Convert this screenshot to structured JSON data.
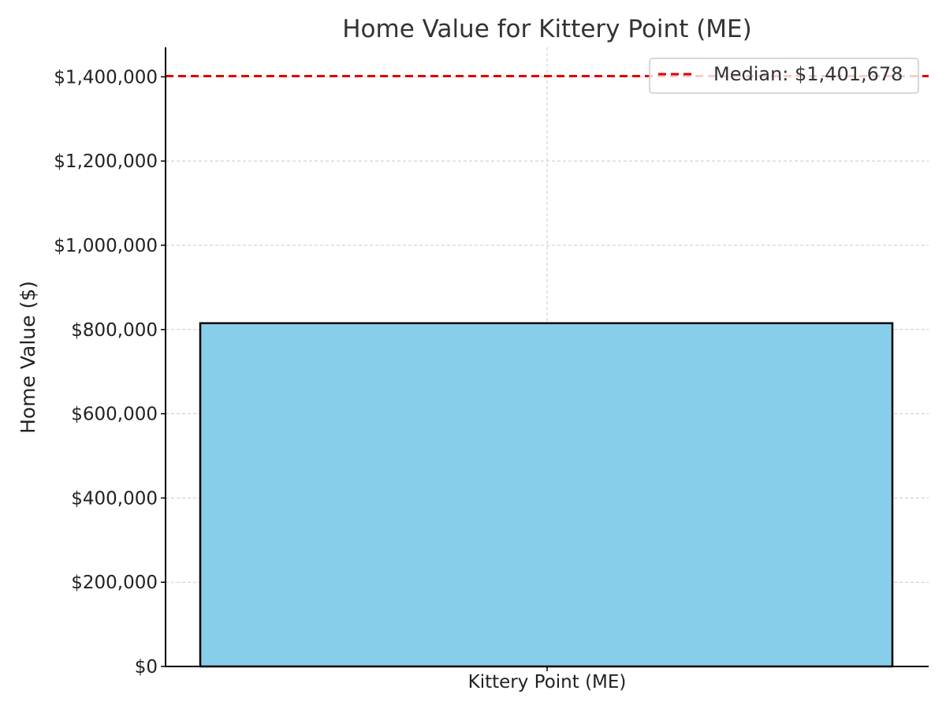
{
  "chart_data": {
    "type": "bar",
    "title": "Home Value for Kittery Point (ME)",
    "xlabel": "",
    "ylabel": "Home Value ($)",
    "categories": [
      "Kittery Point (ME)"
    ],
    "values": [
      815000
    ],
    "ylim": [
      0,
      1470000
    ],
    "yticks": [
      0,
      200000,
      400000,
      600000,
      800000,
      1000000,
      1200000,
      1400000
    ],
    "ytick_labels": [
      "$0",
      "$200,000",
      "$400,000",
      "$600,000",
      "$800,000",
      "$1,000,000",
      "$1,200,000",
      "$1,400,000"
    ],
    "grid": true,
    "reference_line": {
      "value": 1401678,
      "label": "Median: $1,401,678",
      "style": "dashed"
    },
    "legend": {
      "placement": "top-right",
      "entries": [
        "Median: $1,401,678"
      ]
    },
    "colors": {
      "bar_fill": "#87CEEB",
      "bar_edge": "#000000",
      "median_line": "#E00000",
      "grid": "#c8c8c8",
      "text": "#333333"
    }
  }
}
